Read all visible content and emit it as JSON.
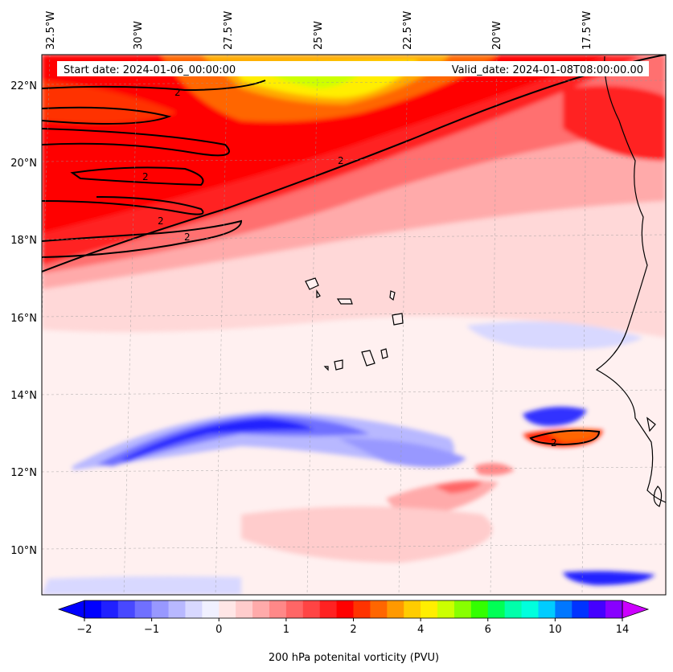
{
  "map": {
    "banner": {
      "start": "Start date: 2024-01-06_00:00:00",
      "valid": "Valid_date: 2024-01-08T08:00:00.00"
    },
    "lon_labels": [
      "32.5°W",
      "30°W",
      "27.5°W",
      "25°W",
      "22.5°W",
      "20°W",
      "17.5°W"
    ],
    "lat_labels": [
      "22°N",
      "20°N",
      "18°N",
      "16°N",
      "14°N",
      "12°N",
      "10°N"
    ],
    "contour_label": "2",
    "extent": {
      "lon_min": -33.5,
      "lon_max": -16.0,
      "lat_min": 8.9,
      "lat_max": 22.8
    }
  },
  "colorbar": {
    "title": "200 hPa potenital vorticity (PVU)",
    "ticks": [
      "−2",
      "−1",
      "0",
      "1",
      "2",
      "4",
      "6",
      "10",
      "14"
    ],
    "colors": [
      "#0000ff",
      "#2020ff",
      "#4848ff",
      "#7070ff",
      "#9898ff",
      "#b8b8ff",
      "#d8d8ff",
      "#f0f0ff",
      "#ffe6e6",
      "#ffcccc",
      "#ffaaaa",
      "#ff8888",
      "#ff6666",
      "#ff4444",
      "#ff2222",
      "#ff0000",
      "#ff3300",
      "#ff6600",
      "#ff9900",
      "#ffcc00",
      "#ffee00",
      "#ccff00",
      "#88ff00",
      "#33ff00",
      "#00ff55",
      "#00ffaa",
      "#00ffdd",
      "#00ccff",
      "#0077ff",
      "#0033ff",
      "#4400ff",
      "#8800ff"
    ],
    "under_color": "#0000ff",
    "over_color": "#cc00ff"
  }
}
